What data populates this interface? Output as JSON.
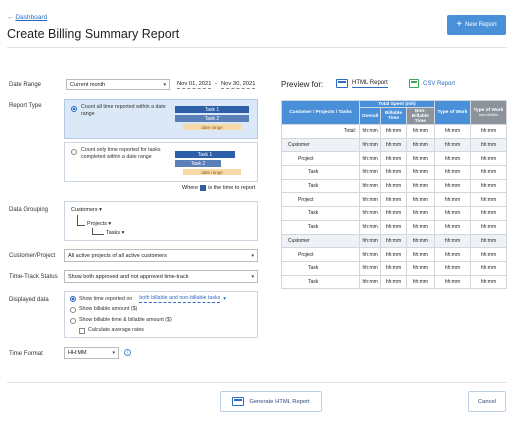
{
  "header": {
    "back": "Dashboard",
    "title": "Create Billing Summary Report",
    "new_report": "New Report"
  },
  "date_range": {
    "label": "Date Range",
    "select": "Current month",
    "start": "Nov 01, 2021",
    "sep": "-",
    "end": "Nov 30, 2021"
  },
  "report_type": {
    "label": "Report Type",
    "option1": "Count all time reported within a date range",
    "option2": "Count only time reported for tasks completed within a date range",
    "task1": "Task 1",
    "task2": "Task 2",
    "date_range_tag": "date range",
    "where_prefix": "Where",
    "where_suffix": "is the time to report"
  },
  "grouping": {
    "label": "Data Grouping",
    "l1": "Customers",
    "l2": "Projects",
    "l3": "Tasks"
  },
  "customer": {
    "label": "Customer/Project",
    "value": "All active projects of all active customers"
  },
  "timetrack": {
    "label": "Time-Track Status",
    "value": "Show both approved and not approved time-track"
  },
  "displayed": {
    "label": "Displayed data",
    "opt1": "Show time reported on",
    "opt1_link": "both billable and non-billable tasks",
    "opt2": "Show billable amount ($)",
    "opt3": "Show billable time & billable amount ($)",
    "check": "Calculate average rates"
  },
  "timeformat": {
    "label": "Time Format",
    "value": "HH:MM"
  },
  "footer": {
    "generate": "Generate HTML Report",
    "cancel": "Cancel"
  },
  "preview": {
    "label": "Preview for:",
    "html": "HTML Report",
    "csv": "CSV Report",
    "th_name": "Customer / Projects / Tasks",
    "th_spent": "Total Spent (mh)",
    "th_overall": "Overall",
    "th_billable": "Billable Time",
    "th_nonbill": "Non-Billable Time",
    "th_type": "Type of Work",
    "th_type2": "Type of Work",
    "th_type2_sub": "non-billable",
    "rows": [
      {
        "name": "Total:",
        "v": "hh:mm"
      },
      {
        "name": "Customer",
        "v": "hh:mm"
      },
      {
        "name": "Project",
        "v": "hh:mm"
      },
      {
        "name": "Task",
        "v": "hh:mm"
      },
      {
        "name": "Task",
        "v": "hh:mm"
      },
      {
        "name": "Project",
        "v": "hh:mm"
      },
      {
        "name": "Task",
        "v": "hh:mm"
      },
      {
        "name": "Task",
        "v": "hh:mm"
      },
      {
        "name": "Customer",
        "v": "hh:mm"
      },
      {
        "name": "Project",
        "v": "hh:mm"
      },
      {
        "name": "Task",
        "v": "hh:mm"
      },
      {
        "name": "Task",
        "v": "hh:mm"
      }
    ]
  },
  "colors": {
    "accent": "#4a90d9",
    "link": "#2c6bc4",
    "csv": "#3aa657",
    "selected": "#dbe8f7",
    "range": "#f7d9a8"
  }
}
